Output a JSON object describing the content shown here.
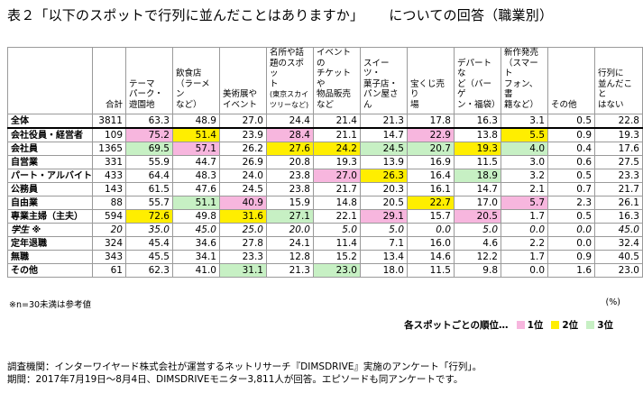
{
  "title": {
    "left": "表２「以下のスポットで行列に並んだことはありますか」",
    "right": "についての回答（職業別）"
  },
  "table": {
    "headers": [
      {
        "lines": [
          "合計"
        ]
      },
      {
        "lines": [
          "テーマ",
          "パーク・",
          "遊園地"
        ]
      },
      {
        "lines": [
          "飲食店",
          "（ラーメン",
          "など）"
        ]
      },
      {
        "lines": [
          "美術展や",
          "イベント"
        ]
      },
      {
        "lines": [
          "名所や話",
          "題のスポッ",
          "ト"
        ],
        "note": "(東京スカイツリーなど)"
      },
      {
        "lines": [
          "イベントの",
          "チケットや",
          "物品販売",
          "など"
        ]
      },
      {
        "lines": [
          "スイーツ・",
          "菓子店・",
          "パン屋さん"
        ]
      },
      {
        "lines": [
          "宝くじ売り",
          "場"
        ]
      },
      {
        "lines": [
          "デパートな",
          "ど（バーゲ",
          "ン・福袋）"
        ]
      },
      {
        "lines": [
          "新作発売",
          "（スマート",
          "フォン、書",
          "籍など）"
        ]
      },
      {
        "lines": [
          "その他"
        ]
      },
      {
        "lines": [
          "行列に",
          "並んだこと",
          "はない"
        ]
      }
    ],
    "rows": [
      {
        "label": "全体",
        "values": [
          "3811",
          "63.3",
          "48.9",
          "27.0",
          "24.4",
          "21.4",
          "21.3",
          "17.8",
          "16.3",
          "3.1",
          "0.5",
          "22.8"
        ],
        "ranks": [
          0,
          0,
          0,
          0,
          0,
          0,
          0,
          0,
          0,
          0,
          0,
          0
        ]
      },
      {
        "label": "会社役員・経営者",
        "values": [
          "109",
          "75.2",
          "51.4",
          "23.9",
          "28.4",
          "21.1",
          "14.7",
          "22.9",
          "13.8",
          "5.5",
          "0.9",
          "19.3"
        ],
        "ranks": [
          0,
          1,
          2,
          0,
          1,
          0,
          0,
          1,
          0,
          2,
          0,
          0
        ]
      },
      {
        "label": "会社員",
        "values": [
          "1365",
          "69.5",
          "57.1",
          "26.2",
          "27.6",
          "24.2",
          "24.5",
          "20.7",
          "19.3",
          "4.0",
          "0.4",
          "17.6"
        ],
        "ranks": [
          0,
          3,
          1,
          0,
          2,
          2,
          3,
          3,
          2,
          3,
          0,
          0
        ]
      },
      {
        "label": "自営業",
        "values": [
          "331",
          "55.9",
          "44.7",
          "26.9",
          "20.8",
          "19.3",
          "13.9",
          "16.9",
          "11.5",
          "3.0",
          "0.6",
          "27.5"
        ],
        "ranks": [
          0,
          0,
          0,
          0,
          0,
          0,
          0,
          0,
          0,
          0,
          0,
          0
        ]
      },
      {
        "label": "パート・アルバイト",
        "values": [
          "433",
          "64.4",
          "48.3",
          "24.0",
          "23.8",
          "27.0",
          "26.3",
          "16.4",
          "18.9",
          "3.2",
          "0.5",
          "23.3"
        ],
        "ranks": [
          0,
          0,
          0,
          0,
          0,
          1,
          2,
          0,
          3,
          0,
          0,
          0
        ]
      },
      {
        "label": "公務員",
        "values": [
          "143",
          "61.5",
          "47.6",
          "24.5",
          "23.8",
          "21.7",
          "20.3",
          "16.1",
          "14.7",
          "2.1",
          "0.7",
          "21.7"
        ],
        "ranks": [
          0,
          0,
          0,
          0,
          0,
          0,
          0,
          0,
          0,
          0,
          0,
          0
        ]
      },
      {
        "label": "自由業",
        "values": [
          "88",
          "55.7",
          "51.1",
          "40.9",
          "15.9",
          "14.8",
          "20.5",
          "22.7",
          "17.0",
          "5.7",
          "2.3",
          "26.1"
        ],
        "ranks": [
          0,
          0,
          3,
          1,
          0,
          0,
          0,
          2,
          0,
          1,
          0,
          0
        ]
      },
      {
        "label": "専業主婦（主夫）",
        "values": [
          "594",
          "72.6",
          "49.8",
          "31.6",
          "27.1",
          "22.1",
          "29.1",
          "15.7",
          "20.5",
          "1.7",
          "0.5",
          "16.3"
        ],
        "ranks": [
          0,
          2,
          0,
          2,
          3,
          0,
          1,
          0,
          1,
          0,
          0,
          0
        ]
      },
      {
        "label": "学生 ※",
        "values": [
          "20",
          "35.0",
          "45.0",
          "25.0",
          "20.0",
          "5.0",
          "5.0",
          "0.0",
          "5.0",
          "0.0",
          "0.0",
          "45.0"
        ],
        "ranks": [
          0,
          0,
          0,
          0,
          0,
          0,
          0,
          0,
          0,
          0,
          0,
          0
        ],
        "italic": true
      },
      {
        "label": "定年退職",
        "values": [
          "324",
          "45.4",
          "34.6",
          "27.8",
          "24.1",
          "11.4",
          "7.1",
          "16.0",
          "4.6",
          "2.2",
          "0.0",
          "32.4"
        ],
        "ranks": [
          0,
          0,
          0,
          0,
          0,
          0,
          0,
          0,
          0,
          0,
          0,
          0
        ]
      },
      {
        "label": "無職",
        "values": [
          "343",
          "45.5",
          "34.1",
          "23.3",
          "12.8",
          "15.2",
          "13.4",
          "14.6",
          "12.2",
          "1.7",
          "0.9",
          "40.5"
        ],
        "ranks": [
          0,
          0,
          0,
          0,
          0,
          0,
          0,
          0,
          0,
          0,
          0,
          0
        ]
      },
      {
        "label": "その他",
        "values": [
          "61",
          "62.3",
          "41.0",
          "31.1",
          "21.3",
          "23.0",
          "18.0",
          "11.5",
          "9.8",
          "0.0",
          "1.6",
          "23.0"
        ],
        "ranks": [
          0,
          0,
          0,
          3,
          0,
          3,
          0,
          0,
          0,
          0,
          0,
          0
        ]
      }
    ]
  },
  "colors": {
    "rank1": "#f7b6de",
    "rank2": "#ffee00",
    "rank3": "#c7f0c4"
  },
  "note": "※n=30未満は参考値",
  "unit": "(%)",
  "legend": {
    "label": "各スポットごとの順位…",
    "items": [
      "1位",
      "2位",
      "3位"
    ]
  },
  "footer": {
    "line1": "調査機関：インターワイヤード株式会社が運営するネットリサーチ『DIMSDRIVE』実施のアンケート「行列」。",
    "line2": "期間：2017年7月19日～8月4日、DIMSDRIVEモニター3,811人が回答。エピソードも同アンケートです。"
  }
}
